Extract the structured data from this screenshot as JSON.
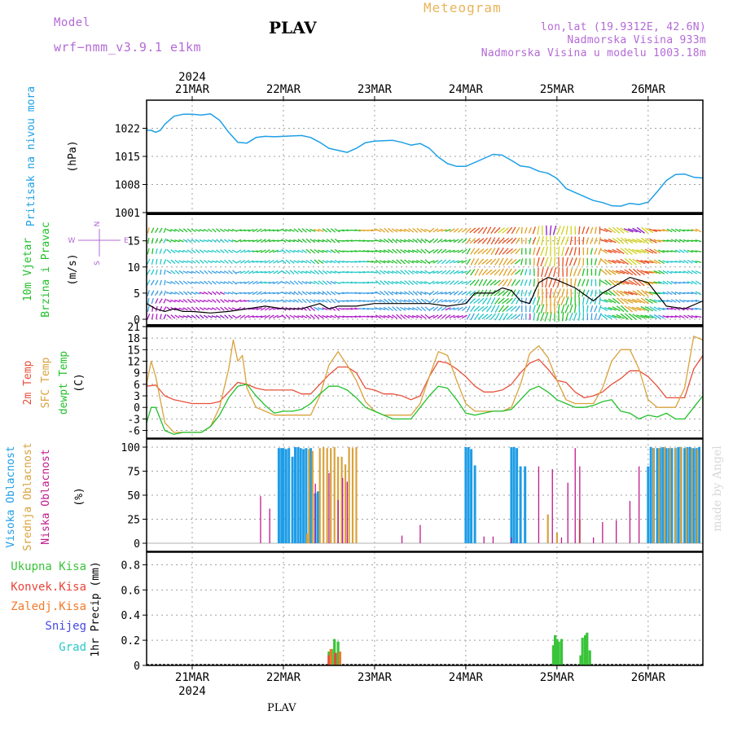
{
  "header": {
    "model_label": "Model",
    "model_value": "wrf−nmm_v3.9.1  e1km",
    "station": "PLAV",
    "product": "Meteogram",
    "coords": "lon,lat (19.9312E, 42.6N)",
    "altitude": "Nadmorska Visina 933m",
    "model_altitude": "Nadmorska Visina u modelu 1003.18m",
    "footer_station": "PLAV",
    "watermark": "made by Angel"
  },
  "colors": {
    "pressure": "#1ea0e6",
    "temp2m": "#e8503a",
    "sfc_temp": "#d9a23c",
    "dewpoint": "#22c02a",
    "high_cloud": "#1e9de6",
    "mid_cloud": "#d9a23c",
    "low_cloud": "#c01a8c",
    "total_precip": "#3ac43a",
    "conv_precip": "#e8463a",
    "frozen_precip": "#f07a2a",
    "snow": "#4646e6",
    "graupel": "#2ac8c8",
    "header_purple": "#b36ad6",
    "header_gold": "#e8b45a"
  },
  "chart_data": [
    {
      "type": "line",
      "panel": "pressure",
      "ylabel_left": "Pritisak na nivou mora",
      "ylabel": "(hPa)",
      "ylim": [
        1001,
        1029
      ],
      "yticks": [
        "1001",
        "1008",
        "1015",
        "1022"
      ],
      "x_top_year": "2024",
      "x_tick_labels": [
        "21MAR",
        "22MAR",
        "23MAR",
        "24MAR",
        "25MAR",
        "26MAR"
      ],
      "x_range_days": [
        -0.5,
        5.6
      ],
      "grid": true,
      "series": [
        {
          "key": "pressure",
          "x": [
            -0.5,
            -0.45,
            -0.4,
            -0.35,
            -0.3,
            -0.2,
            -0.1,
            0.0,
            0.1,
            0.2,
            0.3,
            0.4,
            0.5,
            0.6,
            0.7,
            0.8,
            0.9,
            1.0,
            1.2,
            1.3,
            1.4,
            1.5,
            1.6,
            1.7,
            1.8,
            1.9,
            2.0,
            2.2,
            2.3,
            2.4,
            2.5,
            2.6,
            2.7,
            2.8,
            2.9,
            3.0,
            3.2,
            3.3,
            3.4,
            3.5,
            3.6,
            3.7,
            3.8,
            3.9,
            4.0,
            4.1,
            4.2,
            4.3,
            4.4,
            4.5,
            4.6,
            4.7,
            4.8,
            4.9,
            5.0,
            5.1,
            5.2,
            5.3,
            5.4,
            5.5,
            5.6
          ],
          "y": [
            1021.5,
            1021.5,
            1021,
            1021.5,
            1023,
            1025,
            1025.5,
            1025.5,
            1025.3,
            1025.6,
            1024,
            1021,
            1018.5,
            1018.3,
            1019.7,
            1020,
            1019.9,
            1020,
            1020.2,
            1019.7,
            1018.5,
            1017,
            1016.5,
            1016,
            1017,
            1018.4,
            1018.8,
            1019,
            1018.5,
            1017.8,
            1018.2,
            1017,
            1014.8,
            1013.2,
            1012.5,
            1012.5,
            1014.5,
            1015.5,
            1015.3,
            1014,
            1012.6,
            1012.3,
            1011.3,
            1010.8,
            1009.5,
            1007,
            1006,
            1005,
            1004,
            1003.5,
            1002.7,
            1002.6,
            1003.3,
            1003,
            1003.6,
            1006.2,
            1009,
            1010.5,
            1010.6,
            1009.8,
            1009.6
          ]
        }
      ]
    },
    {
      "type": "vector",
      "panel": "wind",
      "ylabel_left": [
        "10m Vjetar",
        "Brzina i Pravac"
      ],
      "ylabel": "(m/s)",
      "compass": [
        "N",
        "S",
        "W",
        "E"
      ],
      "ylim": [
        0,
        19
      ],
      "yticks": [
        "0",
        "5",
        "10",
        "15"
      ],
      "speed_x": [
        -0.5,
        -0.4,
        -0.3,
        -0.2,
        -0.1,
        0.0,
        0.2,
        0.4,
        0.6,
        0.8,
        1.0,
        1.2,
        1.4,
        1.5,
        1.6,
        1.8,
        2.0,
        2.2,
        2.4,
        2.6,
        2.8,
        3.0,
        3.1,
        3.3,
        3.4,
        3.5,
        3.6,
        3.7,
        3.8,
        3.9,
        4.0,
        4.2,
        4.4,
        4.5,
        4.6,
        4.8,
        5.0,
        5.2,
        5.4,
        5.6
      ],
      "speed_y": [
        3,
        2,
        1.5,
        2,
        1.5,
        1.5,
        1.2,
        1.5,
        2,
        2.5,
        2,
        2,
        3,
        2,
        2.5,
        2.5,
        3,
        3,
        3,
        3,
        2.5,
        3,
        5,
        5,
        6,
        5.5,
        3.5,
        3,
        7,
        8,
        7.5,
        6,
        3.5,
        5,
        6,
        8,
        7,
        2.5,
        2,
        3.5
      ],
      "direction_by_day": [
        {
          "day_from": -0.5,
          "day_to": -0.3,
          "dir_deg": 20
        },
        {
          "day_from": -0.3,
          "day_to": 0.5,
          "dir_deg": 300
        },
        {
          "day_from": 0.5,
          "day_to": 1.0,
          "dir_deg": 250
        },
        {
          "day_from": 1.0,
          "day_to": 1.6,
          "dir_deg": 300
        },
        {
          "day_from": 1.6,
          "day_to": 2.0,
          "dir_deg": 90
        },
        {
          "day_from": 2.0,
          "day_to": 2.6,
          "dir_deg": 300
        },
        {
          "day_from": 2.6,
          "day_to": 3.0,
          "dir_deg": 60
        },
        {
          "day_from": 3.0,
          "day_to": 3.6,
          "dir_deg": 40
        },
        {
          "day_from": 3.6,
          "day_to": 4.5,
          "dir_deg": 190
        },
        {
          "day_from": 4.5,
          "day_to": 5.0,
          "dir_deg": 300
        },
        {
          "day_from": 5.0,
          "day_to": 5.6,
          "dir_deg": 290
        }
      ]
    },
    {
      "type": "line",
      "panel": "temperature",
      "ylabel_left": [
        "2m Temp",
        "SFC Temp",
        "dewpt Temp"
      ],
      "ylabel": "(C)",
      "ylim": [
        -8,
        21
      ],
      "yticks": [
        "-6",
        "-3",
        "0",
        "3",
        "6",
        "9",
        "12",
        "15",
        "18",
        "21"
      ],
      "series": [
        {
          "key": "temp2m",
          "x": [
            -0.5,
            -0.4,
            -0.3,
            -0.2,
            -0.1,
            0.0,
            0.1,
            0.2,
            0.3,
            0.4,
            0.5,
            0.6,
            0.7,
            0.8,
            0.9,
            1.0,
            1.1,
            1.2,
            1.3,
            1.4,
            1.5,
            1.6,
            1.7,
            1.8,
            1.9,
            2.0,
            2.1,
            2.2,
            2.3,
            2.4,
            2.5,
            2.6,
            2.7,
            2.8,
            2.9,
            3.0,
            3.1,
            3.2,
            3.3,
            3.4,
            3.5,
            3.6,
            3.7,
            3.8,
            3.9,
            4.0,
            4.1,
            4.2,
            4.3,
            4.4,
            4.5,
            4.6,
            4.7,
            4.8,
            4.9,
            5.0,
            5.1,
            5.2,
            5.3,
            5.4,
            5.5,
            5.6
          ],
          "y": [
            5.5,
            5.8,
            3,
            2,
            1.5,
            1,
            1,
            1,
            1.5,
            4,
            6.5,
            6,
            5,
            4.5,
            4.5,
            4.5,
            4.5,
            3.5,
            3.5,
            6,
            8.5,
            10.5,
            10.5,
            9,
            5,
            4.5,
            3.5,
            3.5,
            3,
            2,
            3,
            8,
            12,
            11.5,
            10,
            8,
            5.5,
            4,
            4,
            4.5,
            6,
            9,
            11.5,
            12.5,
            10,
            7,
            6.5,
            4,
            2.5,
            3,
            4,
            6,
            7.5,
            9.5,
            9.5,
            8,
            5.5,
            2.5,
            2.5,
            2.5,
            10,
            13.5
          ]
        },
        {
          "key": "sfc_temp",
          "x": [
            -0.5,
            -0.45,
            -0.4,
            -0.3,
            -0.2,
            -0.1,
            0.0,
            0.1,
            0.2,
            0.3,
            0.4,
            0.45,
            0.5,
            0.55,
            0.6,
            0.7,
            0.8,
            0.9,
            1.0,
            1.1,
            1.2,
            1.3,
            1.4,
            1.5,
            1.6,
            1.7,
            1.8,
            1.9,
            2.0,
            2.1,
            2.2,
            2.3,
            2.4,
            2.5,
            2.6,
            2.7,
            2.8,
            2.9,
            3.0,
            3.1,
            3.2,
            3.3,
            3.4,
            3.5,
            3.6,
            3.7,
            3.8,
            3.9,
            4.0,
            4.1,
            4.2,
            4.3,
            4.4,
            4.5,
            4.6,
            4.7,
            4.8,
            4.9,
            5.0,
            5.1,
            5.2,
            5.3,
            5.4,
            5.5,
            5.6
          ],
          "y": [
            6,
            12,
            8,
            -4,
            -6.5,
            -6.5,
            -6.5,
            -6.5,
            -5,
            0,
            10,
            17.5,
            12,
            13.5,
            5,
            0,
            -1,
            -2,
            -2,
            -2,
            -2,
            -2,
            3,
            11,
            14.5,
            11,
            7,
            1.5,
            -1,
            -2,
            -2,
            -2,
            -2,
            1,
            8,
            14.5,
            13.5,
            7,
            1,
            -1,
            -1,
            -1,
            -1,
            0,
            6,
            14,
            16,
            13,
            7,
            2,
            1,
            1,
            1,
            5,
            12,
            15,
            15,
            10,
            2,
            0,
            0,
            0,
            5,
            18.5,
            17.5
          ]
        },
        {
          "key": "dewpoint",
          "x": [
            -0.5,
            -0.45,
            -0.4,
            -0.3,
            -0.2,
            -0.1,
            0.0,
            0.1,
            0.2,
            0.3,
            0.4,
            0.5,
            0.6,
            0.7,
            0.8,
            0.9,
            1.0,
            1.1,
            1.2,
            1.3,
            1.4,
            1.5,
            1.6,
            1.7,
            1.8,
            1.9,
            2.0,
            2.1,
            2.2,
            2.3,
            2.4,
            2.5,
            2.6,
            2.7,
            2.8,
            2.9,
            3.0,
            3.1,
            3.2,
            3.3,
            3.4,
            3.5,
            3.6,
            3.7,
            3.8,
            3.9,
            4.0,
            4.1,
            4.2,
            4.3,
            4.4,
            4.5,
            4.6,
            4.7,
            4.8,
            4.9,
            5.0,
            5.1,
            5.2,
            5.3,
            5.4,
            5.5,
            5.6
          ],
          "y": [
            -4,
            0,
            0,
            -6,
            -7,
            -6.5,
            -6.5,
            -6.5,
            -5,
            -2,
            2.5,
            5.5,
            6,
            3,
            0.5,
            -1.5,
            -1,
            -1,
            -0.5,
            1,
            3.5,
            5.5,
            5.5,
            4.5,
            2.5,
            0,
            -1,
            -2,
            -3,
            -3,
            -3,
            0,
            3,
            5.5,
            5,
            2,
            -1.5,
            -2,
            -1.5,
            -1,
            -1,
            -0.5,
            2,
            4.5,
            5.5,
            4,
            2,
            1,
            0,
            0,
            0.5,
            1.5,
            2,
            -1,
            -1.5,
            -3,
            -2,
            -2.5,
            -1.5,
            -3,
            -3,
            0,
            3
          ]
        }
      ]
    },
    {
      "type": "bar",
      "panel": "cloud",
      "ylabel_left": [
        "Visoka Oblacnost",
        "Srednja Oblacnost",
        "Niska Oblacnost"
      ],
      "ylabel": "(%)",
      "ylim": [
        0,
        100
      ],
      "yticks": [
        "0",
        "25",
        "50",
        "75",
        "100"
      ],
      "series": [
        {
          "key": "high_cloud",
          "x": [
            0.95,
            0.98,
            1.0,
            1.03,
            1.06,
            1.1,
            1.13,
            1.16,
            1.19,
            1.22,
            1.25,
            1.3,
            1.35,
            1.38,
            3.0,
            3.03,
            3.06,
            3.1,
            3.5,
            3.53,
            3.56,
            3.6,
            3.65,
            5.0,
            5.03,
            5.06,
            5.1,
            5.13,
            5.16,
            5.2,
            5.23,
            5.26,
            5.3,
            5.33,
            5.36,
            5.4,
            5.43,
            5.46,
            5.5,
            5.53,
            5.56
          ],
          "y": [
            99,
            99,
            99,
            98,
            99,
            90,
            100,
            100,
            99,
            98,
            99,
            99,
            52,
            54,
            100,
            100,
            98,
            81,
            100,
            100,
            99,
            80,
            80,
            80,
            100,
            99,
            99,
            99,
            100,
            99,
            99,
            99,
            99,
            100,
            100,
            99,
            100,
            100,
            99,
            99,
            100
          ]
        },
        {
          "key": "mid_cloud",
          "x": [
            1.26,
            1.28,
            1.32,
            1.4,
            1.44,
            1.48,
            1.52,
            1.56,
            1.6,
            1.64,
            1.68,
            1.72,
            1.76,
            1.8,
            3.9,
            4.0,
            4.25,
            5.06,
            5.12,
            5.18,
            5.24,
            5.3,
            5.36,
            5.42,
            5.48,
            5.54
          ],
          "y": [
            10,
            98,
            96,
            99,
            100,
            99,
            99,
            100,
            90,
            90,
            82,
            100,
            99,
            100,
            30,
            11,
            25,
            99,
            99,
            100,
            99,
            99,
            100,
            99,
            99,
            98
          ]
        },
        {
          "key": "low_cloud",
          "x": [
            0.75,
            0.85,
            1.35,
            1.5,
            1.6,
            1.65,
            1.7,
            2.3,
            2.5,
            3.2,
            3.3,
            3.5,
            3.8,
            3.95,
            4.05,
            4.12,
            4.2,
            4.25,
            4.4,
            4.5,
            4.65,
            4.8,
            4.9
          ],
          "y": [
            49,
            36,
            62,
            73,
            45,
            68,
            64,
            8,
            19,
            7,
            7,
            6,
            80,
            77,
            6,
            63,
            99,
            80,
            6,
            22,
            24,
            44,
            80
          ]
        }
      ]
    },
    {
      "type": "bar",
      "panel": "precip",
      "ylabel_left": [
        "Ukupna Kisa",
        "Konvek.Kisa",
        "Zaledj.Kisa",
        "Snijeg",
        "Grad"
      ],
      "ylabel": "1hr Precip (mm)",
      "ylim": [
        0,
        0.9
      ],
      "yticks": [
        "0",
        "0.2",
        "0.4",
        "0.6",
        "0.8"
      ],
      "x_bottom_year": "2024",
      "series": [
        {
          "key": "total_precip",
          "x": [
            1.5,
            1.53,
            1.56,
            1.6,
            3.96,
            3.98,
            4.0,
            4.02,
            4.05,
            4.26,
            4.28,
            4.31,
            4.33,
            4.36
          ],
          "y": [
            0.11,
            0.13,
            0.21,
            0.19,
            0.16,
            0.24,
            0.21,
            0.19,
            0.21,
            0.08,
            0.22,
            0.24,
            0.26,
            0.12
          ]
        },
        {
          "key": "conv_precip",
          "x": [
            1.5,
            1.57
          ],
          "y": [
            0.08,
            0.1
          ]
        },
        {
          "key": "frozen_precip",
          "x": [
            1.52,
            1.62
          ],
          "y": [
            0.13,
            0.11
          ]
        },
        {
          "key": "snow",
          "x": [],
          "y": []
        },
        {
          "key": "graupel",
          "x": [],
          "y": []
        }
      ]
    }
  ]
}
